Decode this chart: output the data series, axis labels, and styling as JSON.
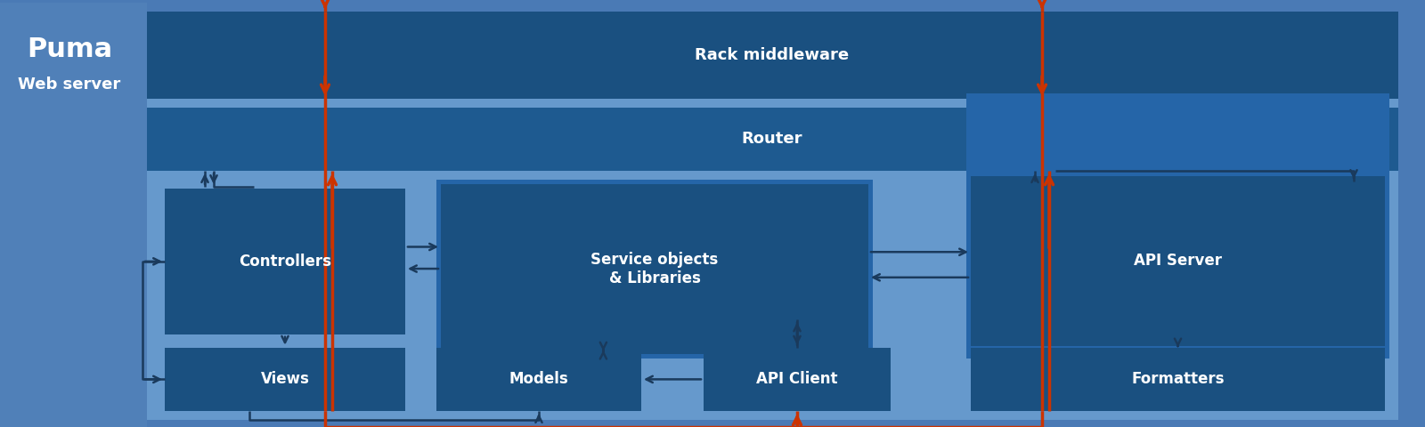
{
  "bg_outer": "#4a7ab5",
  "bg_puma_strip": "#5080b8",
  "bg_inner": "#6699cc",
  "bg_rack": "#1a5080",
  "bg_router": "#1e5a90",
  "bg_dark_box": "#1a5080",
  "bg_medium_box": "#2060a0",
  "bg_service_outer": "#2565a8",
  "text_white": "#ffffff",
  "arrow_dark": "#1a3a5c",
  "arrow_orange": "#cc3300",
  "title_puma": "Puma",
  "subtitle_puma": "Web server",
  "label_rack": "Rack middleware",
  "label_router": "Router",
  "label_controllers": "Controllers",
  "label_views": "Views",
  "label_service": "Service objects\n& Libraries",
  "label_models": "Models",
  "label_api_client": "API Client",
  "label_api_server": "API Server",
  "label_formatters": "Formatters",
  "figw": 16.0,
  "figh": 4.8
}
